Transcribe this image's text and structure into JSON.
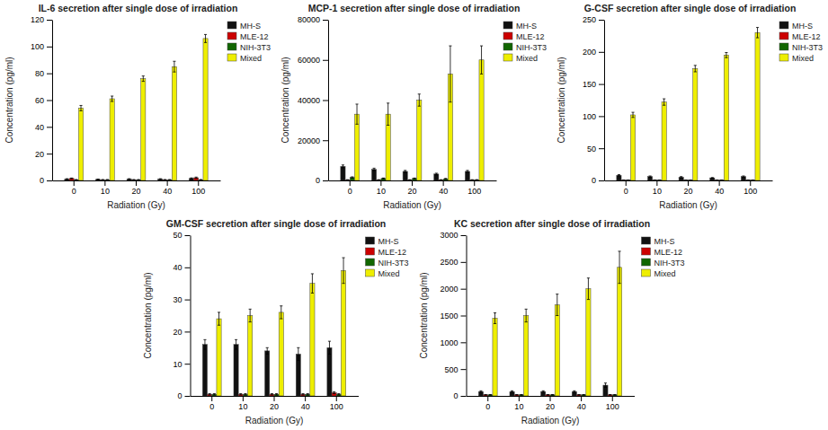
{
  "chart_data": [
    {
      "type": "bar",
      "title": "IL-6 secretion after single dose of irradiation",
      "x_label": "Radiation (Gy)",
      "y_label": "Concentration (pg/ml)",
      "categories": [
        "0",
        "10",
        "20",
        "40",
        "100"
      ],
      "series": [
        {
          "name": "MH-S",
          "color": "#111111",
          "values": [
            1.0,
            0.8,
            1.0,
            1.0,
            1.5
          ],
          "errors": [
            0.3,
            0.2,
            0.3,
            0.3,
            0.4
          ]
        },
        {
          "name": "MLE-12",
          "color": "#cc0000",
          "values": [
            1.5,
            0.5,
            0.5,
            0.5,
            2.0
          ],
          "errors": [
            0.3,
            0.2,
            0.2,
            0.2,
            0.5
          ]
        },
        {
          "name": "NIH-3T3",
          "color": "#116600",
          "values": [
            0.5,
            0.5,
            0.5,
            0.5,
            0.5
          ],
          "errors": [
            0.2,
            0.2,
            0.2,
            0.2,
            0.2
          ]
        },
        {
          "name": "Mixed",
          "color": "#eeee00",
          "values": [
            54,
            61,
            76,
            85,
            106
          ],
          "errors": [
            2,
            2,
            2,
            4,
            3
          ]
        }
      ],
      "ylim": [
        0,
        120
      ],
      "yticks": [
        0,
        20,
        40,
        60,
        80,
        100,
        120
      ],
      "grid": false,
      "legend": "upper right"
    },
    {
      "type": "bar",
      "title": "MCP-1 secretion after single dose of irradiation",
      "x_label": "Radiation (Gy)",
      "y_label": "Concentration (pg/ml)",
      "categories": [
        "0",
        "10",
        "20",
        "40",
        "100"
      ],
      "series": [
        {
          "name": "MH-S",
          "color": "#111111",
          "values": [
            7000,
            5500,
            4500,
            3200,
            4500
          ],
          "errors": [
            700,
            600,
            500,
            400,
            500
          ]
        },
        {
          "name": "MLE-12",
          "color": "#cc0000",
          "values": [
            300,
            300,
            300,
            300,
            300
          ],
          "errors": [
            50,
            50,
            50,
            50,
            50
          ]
        },
        {
          "name": "NIH-3T3",
          "color": "#116600",
          "values": [
            1500,
            1000,
            1000,
            800,
            300
          ],
          "errors": [
            300,
            200,
            200,
            200,
            100
          ]
        },
        {
          "name": "Mixed",
          "color": "#eeee00",
          "values": [
            33000,
            33000,
            40000,
            53000,
            60000
          ],
          "errors": [
            5000,
            5500,
            3000,
            14000,
            7000
          ]
        }
      ],
      "ylim": [
        0,
        80000
      ],
      "yticks": [
        0,
        20000,
        40000,
        60000,
        80000
      ],
      "grid": false,
      "legend": "upper right"
    },
    {
      "type": "bar",
      "title": "G-CSF secretion after single dose of irradiation",
      "x_label": "Radiation (Gy)",
      "y_label": "Concentration (pg/ml)",
      "categories": [
        "0",
        "10",
        "20",
        "40",
        "100"
      ],
      "series": [
        {
          "name": "MH-S",
          "color": "#111111",
          "values": [
            8,
            6,
            5,
            4,
            6
          ],
          "errors": [
            1,
            1,
            1,
            0.5,
            1
          ]
        },
        {
          "name": "MLE-12",
          "color": "#cc0000",
          "values": [
            0.5,
            0.5,
            0.5,
            0.5,
            0.5
          ],
          "errors": [
            0.2,
            0.2,
            0.2,
            0.2,
            0.2
          ]
        },
        {
          "name": "NIH-3T3",
          "color": "#116600",
          "values": [
            0.5,
            0.5,
            0.5,
            0.5,
            0.5
          ],
          "errors": [
            0.2,
            0.2,
            0.2,
            0.2,
            0.2
          ]
        },
        {
          "name": "Mixed",
          "color": "#eeee00",
          "values": [
            102,
            122,
            174,
            195,
            230
          ],
          "errors": [
            4,
            5,
            5,
            4,
            8
          ]
        }
      ],
      "ylim": [
        0,
        250
      ],
      "yticks": [
        0,
        50,
        100,
        150,
        200,
        250
      ],
      "grid": false,
      "legend": "upper right"
    },
    {
      "type": "bar",
      "title": "GM-CSF secretion after single dose of irradiation",
      "x_label": "Radiation (Gy)",
      "y_label": "Concentration (pg/ml)",
      "categories": [
        "0",
        "10",
        "20",
        "40",
        "100"
      ],
      "series": [
        {
          "name": "MH-S",
          "color": "#111111",
          "values": [
            16,
            16,
            14,
            13,
            15
          ],
          "errors": [
            1.5,
            1.5,
            1.0,
            2.0,
            2.0
          ]
        },
        {
          "name": "MLE-12",
          "color": "#cc0000",
          "values": [
            0.5,
            0.5,
            0.5,
            0.5,
            1.0
          ],
          "errors": [
            0.2,
            0.2,
            0.2,
            0.2,
            0.3
          ]
        },
        {
          "name": "NIH-3T3",
          "color": "#116600",
          "values": [
            0.5,
            0.5,
            0.5,
            0.5,
            0.5
          ],
          "errors": [
            0.2,
            0.2,
            0.2,
            0.2,
            0.2
          ]
        },
        {
          "name": "Mixed",
          "color": "#eeee00",
          "values": [
            24,
            25,
            26,
            35,
            39
          ],
          "errors": [
            2,
            2,
            2,
            3,
            4
          ]
        }
      ],
      "ylim": [
        0,
        50
      ],
      "yticks": [
        0,
        10,
        20,
        30,
        40,
        50
      ],
      "grid": false,
      "legend": "upper right"
    },
    {
      "type": "bar",
      "title": "KC secretion after single dose of irradiation",
      "x_label": "Radiation (Gy)",
      "y_label": "Concentration (pg/ml)",
      "categories": [
        "0",
        "10",
        "20",
        "40",
        "100"
      ],
      "series": [
        {
          "name": "MH-S",
          "color": "#111111",
          "values": [
            80,
            80,
            80,
            80,
            200
          ],
          "errors": [
            15,
            15,
            15,
            15,
            40
          ]
        },
        {
          "name": "MLE-12",
          "color": "#cc0000",
          "values": [
            20,
            20,
            20,
            20,
            20
          ],
          "errors": [
            5,
            5,
            5,
            5,
            5
          ]
        },
        {
          "name": "NIH-3T3",
          "color": "#116600",
          "values": [
            20,
            20,
            20,
            20,
            20
          ],
          "errors": [
            5,
            5,
            5,
            5,
            5
          ]
        },
        {
          "name": "Mixed",
          "color": "#eeee00",
          "values": [
            1450,
            1500,
            1700,
            2000,
            2400
          ],
          "errors": [
            100,
            120,
            200,
            200,
            300
          ]
        }
      ],
      "ylim": [
        0,
        3000
      ],
      "yticks": [
        0,
        500,
        1000,
        1500,
        2000,
        2500,
        3000
      ],
      "grid": false,
      "legend": "upper right"
    }
  ]
}
